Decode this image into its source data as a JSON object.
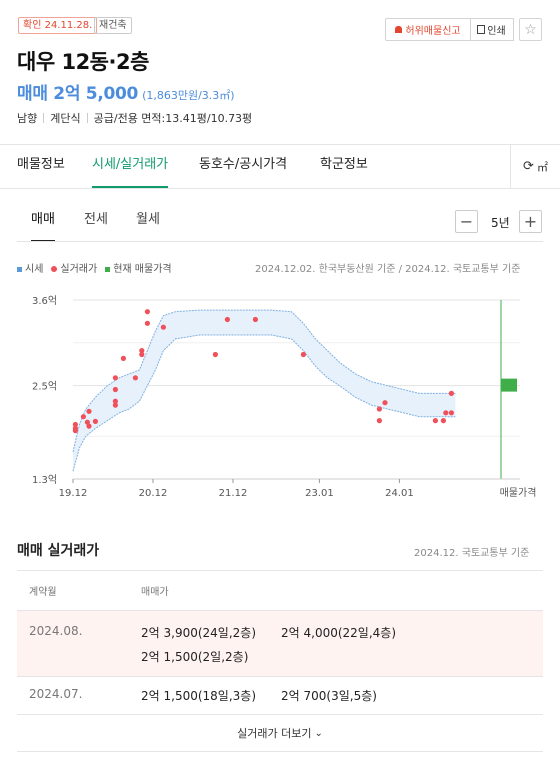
{
  "header": {
    "confirm_badge": "확인 24.11.28.",
    "type_badge": "재건축",
    "report_label": "허위매물신고",
    "print_label": "인쇄",
    "title": "대우 12동·2층",
    "price_main": "매매 2억 5,000",
    "price_sub": "(1,863만원/3.3㎡)",
    "info": [
      "남향",
      "계단식",
      "공급/전용 면적:13.41평/10.73평"
    ]
  },
  "tabs": [
    "매물정보",
    "시세/실거래가",
    "동호수/공시가격",
    "학군정보"
  ],
  "active_tab": "시세/실거래가",
  "unit_toggle": "㎡",
  "subtabs": [
    "매매",
    "전세",
    "월세"
  ],
  "active_subtab": "매매",
  "period": "5년",
  "legend": [
    "시세",
    "실거래가",
    "현재 매물가격"
  ],
  "legend_colors": {
    "market": "#5b9bd5",
    "deal": "#f0505a",
    "listing": "#3fae49"
  },
  "chart_source": "2024.12.02. 한국부동산원 기준 / 2024.12. 국토교통부 기준",
  "chart_data": {
    "type": "scatter",
    "y_unit": "억",
    "ylim": [
      1.3,
      3.6
    ],
    "y_ticks": [
      {
        "v": 3.6,
        "label": "3.6억"
      },
      {
        "v": 2.5,
        "label": "2.5억"
      },
      {
        "v": 1.3,
        "label": "1.3억"
      }
    ],
    "xlim": [
      2019.92,
      2024.92
    ],
    "x_ticks": [
      {
        "v": 2019.92,
        "label": "19.12"
      },
      {
        "v": 2020.92,
        "label": "20.12"
      },
      {
        "v": 2021.92,
        "label": "21.12"
      },
      {
        "v": 2023.0,
        "label": "23.01"
      },
      {
        "v": 2024.0,
        "label": "24.01"
      }
    ],
    "x_end_label": "매물가격",
    "market_band": {
      "x": [
        2019.92,
        2020.0,
        2020.08,
        2020.2,
        2020.35,
        2020.5,
        2020.62,
        2020.75,
        2020.85,
        2020.95,
        2021.05,
        2021.2,
        2021.5,
        2021.8,
        2022.1,
        2022.4,
        2022.65,
        2022.8,
        2022.95,
        2023.1,
        2023.25,
        2023.45,
        2023.65,
        2023.85,
        2024.05,
        2024.25,
        2024.45,
        2024.7
      ],
      "upper": [
        1.65,
        2.0,
        2.2,
        2.35,
        2.5,
        2.6,
        2.65,
        2.7,
        2.95,
        3.2,
        3.4,
        3.45,
        3.47,
        3.47,
        3.47,
        3.47,
        3.45,
        3.3,
        3.1,
        2.95,
        2.8,
        2.65,
        2.55,
        2.5,
        2.45,
        2.4,
        2.4,
        2.4
      ],
      "lower": [
        1.4,
        1.7,
        1.85,
        1.95,
        2.05,
        2.15,
        2.2,
        2.3,
        2.5,
        2.7,
        2.95,
        3.1,
        3.15,
        3.15,
        3.15,
        3.15,
        3.1,
        2.95,
        2.75,
        2.6,
        2.5,
        2.35,
        2.25,
        2.2,
        2.15,
        2.1,
        2.1,
        2.1
      ]
    },
    "deals": [
      {
        "x": 2019.95,
        "y": 2.0
      },
      {
        "x": 2019.95,
        "y": 1.95
      },
      {
        "x": 2019.95,
        "y": 1.92
      },
      {
        "x": 2020.05,
        "y": 2.1
      },
      {
        "x": 2020.1,
        "y": 2.03
      },
      {
        "x": 2020.12,
        "y": 2.17
      },
      {
        "x": 2020.12,
        "y": 1.98
      },
      {
        "x": 2020.2,
        "y": 2.04
      },
      {
        "x": 2020.45,
        "y": 2.6
      },
      {
        "x": 2020.45,
        "y": 2.45
      },
      {
        "x": 2020.45,
        "y": 2.3
      },
      {
        "x": 2020.45,
        "y": 2.25
      },
      {
        "x": 2020.55,
        "y": 2.85
      },
      {
        "x": 2020.7,
        "y": 2.6
      },
      {
        "x": 2020.78,
        "y": 2.9
      },
      {
        "x": 2020.78,
        "y": 2.95
      },
      {
        "x": 2020.85,
        "y": 3.45
      },
      {
        "x": 2020.85,
        "y": 3.3
      },
      {
        "x": 2021.05,
        "y": 3.25
      },
      {
        "x": 2021.7,
        "y": 2.9
      },
      {
        "x": 2021.85,
        "y": 3.35
      },
      {
        "x": 2022.2,
        "y": 3.35
      },
      {
        "x": 2022.8,
        "y": 2.9
      },
      {
        "x": 2023.75,
        "y": 2.2
      },
      {
        "x": 2023.75,
        "y": 2.05
      },
      {
        "x": 2023.82,
        "y": 2.28
      },
      {
        "x": 2024.45,
        "y": 2.05
      },
      {
        "x": 2024.55,
        "y": 2.05
      },
      {
        "x": 2024.58,
        "y": 2.15
      },
      {
        "x": 2024.65,
        "y": 2.15
      },
      {
        "x": 2024.65,
        "y": 2.4
      }
    ],
    "listing_price": 2.5
  },
  "transactions": {
    "title": "매매 실거래가",
    "source": "2024.12. 국토교통부 기준",
    "col_month": "계약월",
    "col_price": "매매가",
    "rows": [
      {
        "month": "2024.08.",
        "deals": [
          "2억 3,900(24일,2층)",
          "2억 4,000(22일,4층)",
          "2억 1,500(2일,2층)"
        ]
      },
      {
        "month": "2024.07.",
        "deals": [
          "2억 1,500(18일,3층)",
          "2억 700(3일,5층)"
        ]
      }
    ],
    "more_label": "실거래가 더보기"
  }
}
